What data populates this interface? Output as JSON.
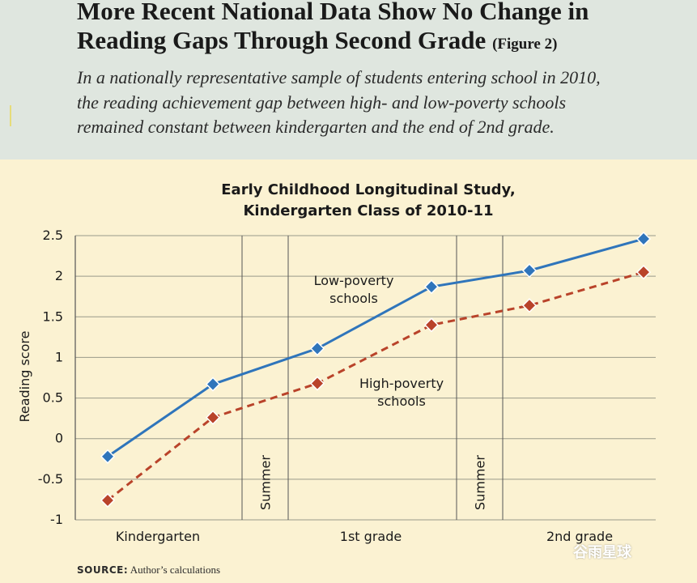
{
  "header": {
    "title_line1": "More Recent National Data Show No Change in",
    "title_line2": "Reading Gaps Through Second Grade",
    "figure_label": "(Figure 2)",
    "subtitle_line1": "In a nationally representative sample of students entering school in 2010,",
    "subtitle_line2": "the reading achievement gap between high- and low-poverty schools",
    "subtitle_line3": "remained constant between kindergarten and the end of 2nd grade."
  },
  "source": {
    "label": "SOURCE:",
    "text": "Author’s calculations"
  },
  "watermark": "谷雨星球",
  "chart_data": {
    "type": "line",
    "title_line1": "Early Childhood Longitudinal Study,",
    "title_line2": "Kindergarten Class of 2010-11",
    "ylabel": "Reading score",
    "ylim": [
      -1,
      2.5
    ],
    "yticks": [
      {
        "value": 2.5,
        "label": "2.5"
      },
      {
        "value": 2,
        "label": "2"
      },
      {
        "value": 1.5,
        "label": "1.5"
      },
      {
        "value": 1,
        "label": "1"
      },
      {
        "value": 0.5,
        "label": "0.5"
      },
      {
        "value": 0,
        "label": "0"
      },
      {
        "value": -0.5,
        "label": "-0.5"
      },
      {
        "value": -1,
        "label": "-1"
      }
    ],
    "grid": "horizontal",
    "period_labels": [
      "Kindergarten",
      "1st grade",
      "2nd grade"
    ],
    "summer_label": "Summer",
    "series": [
      {
        "name_line1": "Low-poverty",
        "name_line2": "schools",
        "style": "solid",
        "color": "#2f75bb",
        "values": [
          -0.22,
          0.67,
          1.11,
          1.87,
          2.07,
          2.46
        ]
      },
      {
        "name_line1": "High-poverty",
        "name_line2": "schools",
        "style": "dashed",
        "color": "#b9432a",
        "values": [
          -0.76,
          0.26,
          0.68,
          1.4,
          1.64,
          2.05
        ]
      }
    ]
  }
}
